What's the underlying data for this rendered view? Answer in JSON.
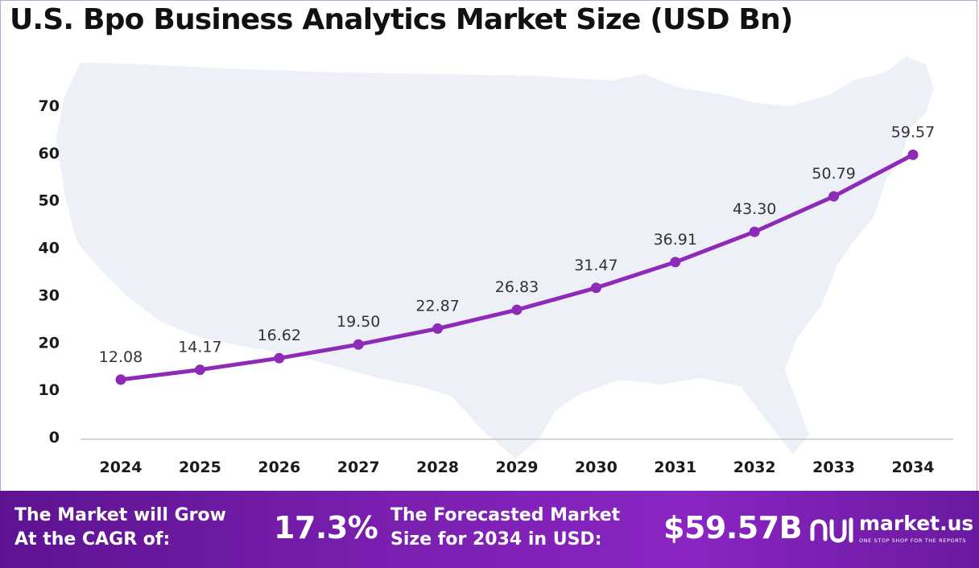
{
  "chart_data": {
    "type": "line",
    "title": "U.S. Bpo Business Analytics Market Size (USD Bn)",
    "categories": [
      "2024",
      "2025",
      "2026",
      "2027",
      "2028",
      "2029",
      "2030",
      "2031",
      "2032",
      "2033",
      "2034"
    ],
    "values": [
      12.08,
      14.17,
      16.62,
      19.5,
      22.87,
      26.83,
      31.47,
      36.91,
      43.3,
      50.79,
      59.57
    ],
    "value_labels": [
      "12.08",
      "14.17",
      "16.62",
      "19.50",
      "22.87",
      "26.83",
      "31.47",
      "36.91",
      "43.30",
      "50.79",
      "59.57"
    ],
    "yticks": [
      "0",
      "10",
      "20",
      "30",
      "40",
      "50",
      "60",
      "70"
    ],
    "ylim": [
      0,
      70
    ],
    "xlabel": "",
    "ylabel": "",
    "grid": false,
    "line_color": "#8e2ab8",
    "background": "map of the United States, light blue-gray"
  },
  "footer": {
    "cagr_label_line1": "The Market will Grow",
    "cagr_label_line2": "At the CAGR of:",
    "cagr_value": "17.3%",
    "forecast_label_line1": "The Forecasted Market",
    "forecast_label_line2": "Size for 2034 in USD:",
    "forecast_value": "$59.57B",
    "brand_name": "market.us",
    "brand_tagline": "ONE STOP SHOP FOR THE REPORTS",
    "brand_icon": "market-us-logo-icon",
    "colors": {
      "band_start": "#5d1391",
      "band_end": "#8a25c2"
    }
  }
}
